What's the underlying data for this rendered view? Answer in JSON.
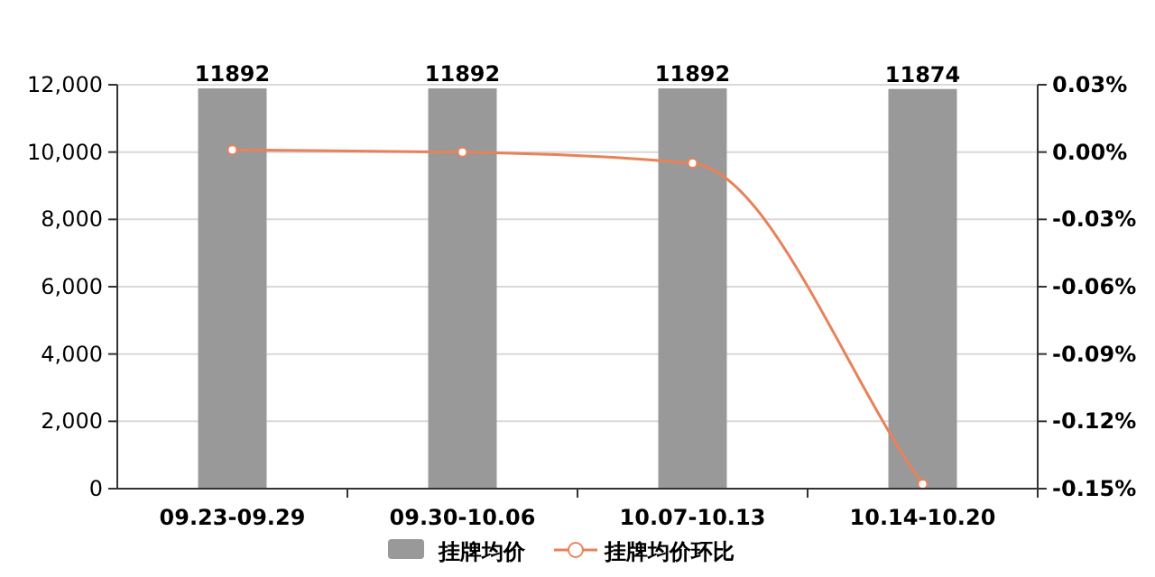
{
  "chart_data": {
    "type": "bar",
    "categories": [
      "09.23-09.29",
      "09.30-10.06",
      "10.07-10.13",
      "10.14-10.20"
    ],
    "series": [
      {
        "name": "挂牌均价",
        "color": "#999999",
        "values": [
          11892,
          11892,
          11892,
          11874
        ],
        "value_labels": [
          "11892",
          "11892",
          "11892",
          "11874"
        ]
      },
      {
        "name": "挂牌均价环比",
        "type": "line",
        "axis": "y2",
        "color": "#e8825a",
        "values": [
          0.001,
          0.0,
          -0.005,
          -0.148
        ]
      }
    ],
    "ylim": [
      0,
      12000
    ],
    "yticks": [
      0,
      {
        "value": 2000,
        "label": "2,000"
      },
      {
        "value": 4000,
        "label": "4,000"
      },
      {
        "value": 6000,
        "label": "6,000"
      },
      {
        "value": 8000,
        "label": "8,000"
      },
      {
        "value": 10000,
        "label": "10,000"
      },
      {
        "value": 12000,
        "label": "12,000"
      }
    ],
    "y2lim": [
      -0.15,
      0.03
    ],
    "y2ticks": [
      {
        "value": -0.15,
        "label": "-0.15%"
      },
      {
        "value": -0.12,
        "label": "-0.12%"
      },
      {
        "value": -0.09,
        "label": "-0.09%"
      },
      {
        "value": -0.06,
        "label": "-0.06%"
      },
      {
        "value": -0.03,
        "label": "-0.03%"
      },
      {
        "value": 0,
        "label": "0.00%"
      },
      {
        "value": 0.03,
        "label": "0.03%"
      }
    ],
    "grid": "y",
    "legend": "bottom",
    "marker": "circle",
    "line_style": "solid"
  }
}
